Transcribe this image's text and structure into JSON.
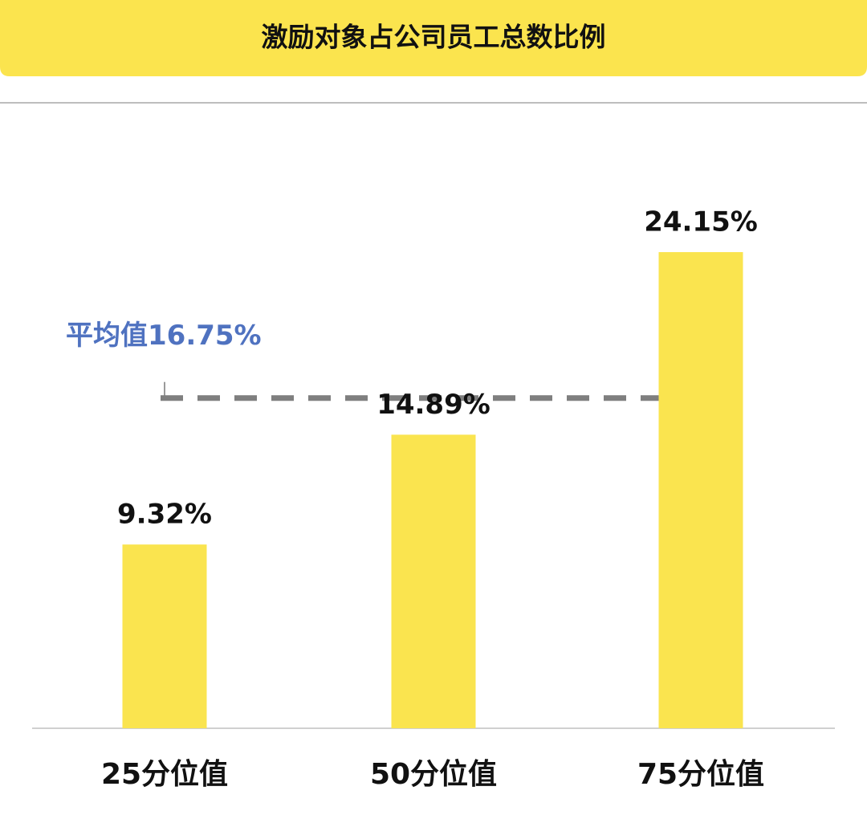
{
  "chart_data": {
    "type": "bar",
    "title": "激励对象占公司员工总数比例",
    "categories": [
      "25分位值",
      "50分位值",
      "75分位值"
    ],
    "values": [
      9.32,
      14.89,
      24.15
    ],
    "value_labels": [
      "9.32%",
      "14.89%",
      "24.15%"
    ],
    "color": "#fae44f",
    "average": {
      "value": 16.75,
      "label": "平均值16.75%",
      "color": "#4f72c0"
    }
  }
}
